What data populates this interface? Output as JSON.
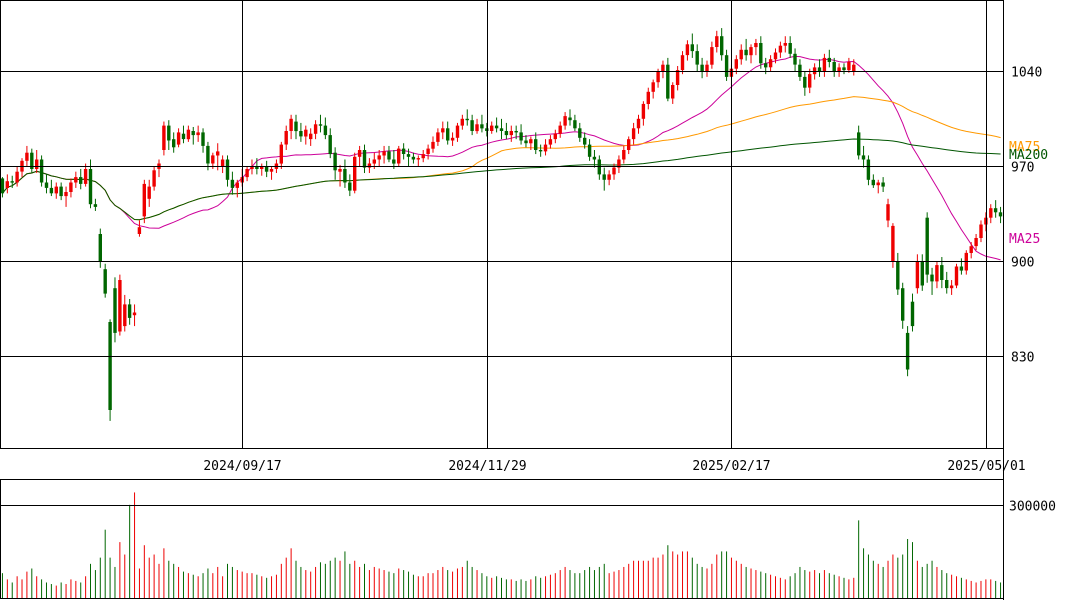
{
  "chart_data": {
    "type": "candlestick",
    "price_axis": {
      "ticks": [
        830,
        900,
        970,
        1040
      ],
      "ylim": [
        762,
        1092
      ]
    },
    "volume_axis": {
      "ticks": [
        300000
      ],
      "ylim": [
        0,
        380000
      ]
    },
    "x_ticks": [
      {
        "index": 49,
        "label": "2024/09/17"
      },
      {
        "index": 99,
        "label": "2024/11/29"
      },
      {
        "index": 149,
        "label": "2025/02/17"
      },
      {
        "index": 201,
        "label": "2025/05/01"
      }
    ],
    "colors": {
      "up": "#ee0000",
      "down": "#006600",
      "ma25": "#cc0099",
      "ma75": "#ff9900",
      "ma200": "#005500"
    },
    "moving_averages": [
      {
        "name": "MA25",
        "color": "#cc0099",
        "last": 917
      },
      {
        "name": "MA75",
        "color": "#ff9900",
        "last": 985
      },
      {
        "name": "MA200",
        "color": "#005500",
        "last": 979
      }
    ],
    "candles": [
      [
        961,
        962,
        947,
        950,
        80000
      ],
      [
        954,
        964,
        950,
        959,
        60000
      ],
      [
        959,
        963,
        954,
        958,
        50000
      ],
      [
        958,
        970,
        955,
        966,
        70000
      ],
      [
        966,
        976,
        962,
        974,
        60000
      ],
      [
        974,
        985,
        970,
        980,
        85000
      ],
      [
        980,
        983,
        965,
        968,
        95000
      ],
      [
        968,
        982,
        965,
        975,
        70000
      ],
      [
        975,
        978,
        955,
        958,
        60000
      ],
      [
        958,
        964,
        950,
        954,
        50000
      ],
      [
        954,
        960,
        948,
        950,
        45000
      ],
      [
        950,
        958,
        946,
        955,
        40000
      ],
      [
        955,
        958,
        945,
        948,
        50000
      ],
      [
        948,
        955,
        940,
        951,
        45000
      ],
      [
        951,
        961,
        947,
        958,
        60000
      ],
      [
        958,
        966,
        954,
        962,
        55000
      ],
      [
        962,
        968,
        953,
        957,
        50000
      ],
      [
        957,
        972,
        955,
        968,
        70000
      ],
      [
        968,
        975,
        939,
        942,
        110000
      ],
      [
        942,
        946,
        937,
        940,
        90000
      ],
      [
        920,
        924,
        895,
        900,
        130000
      ],
      [
        894,
        898,
        873,
        876,
        220000
      ],
      [
        855,
        857,
        782,
        790,
        130000
      ],
      [
        880,
        888,
        840,
        847,
        100000
      ],
      [
        848,
        890,
        845,
        886,
        180000
      ],
      [
        852,
        875,
        848,
        868,
        140000
      ],
      [
        868,
        872,
        853,
        858,
        300000
      ],
      [
        860,
        868,
        852,
        862,
        340000
      ],
      [
        920,
        930,
        918,
        925,
        95000
      ],
      [
        933,
        960,
        928,
        957,
        170000
      ],
      [
        946,
        960,
        940,
        955,
        130000
      ],
      [
        955,
        970,
        952,
        967,
        140000
      ],
      [
        968,
        975,
        962,
        972,
        110000
      ],
      [
        982,
        1003,
        978,
        1000,
        160000
      ],
      [
        1000,
        1004,
        982,
        989,
        120000
      ],
      [
        990,
        995,
        980,
        984,
        110000
      ],
      [
        986,
        998,
        984,
        995,
        100000
      ],
      [
        994,
        1000,
        987,
        990,
        85000
      ],
      [
        990,
        1000,
        988,
        997,
        80000
      ],
      [
        996,
        999,
        986,
        993,
        75000
      ],
      [
        993,
        1000,
        988,
        995,
        70000
      ],
      [
        995,
        998,
        980,
        985,
        80000
      ],
      [
        985,
        988,
        967,
        972,
        95000
      ],
      [
        972,
        980,
        968,
        978,
        80000
      ],
      [
        978,
        987,
        967,
        981,
        100000
      ],
      [
        970,
        978,
        965,
        975,
        70000
      ],
      [
        975,
        978,
        955,
        960,
        110000
      ],
      [
        960,
        966,
        949,
        954,
        100000
      ],
      [
        954,
        960,
        947,
        958,
        90000
      ],
      [
        958,
        968,
        955,
        962,
        85000
      ],
      [
        962,
        970,
        959,
        968,
        80000
      ],
      [
        968,
        975,
        964,
        970,
        80000
      ],
      [
        970,
        976,
        964,
        968,
        75000
      ],
      [
        968,
        972,
        963,
        970,
        70000
      ],
      [
        970,
        974,
        962,
        966,
        65000
      ],
      [
        966,
        970,
        960,
        968,
        70000
      ],
      [
        968,
        975,
        965,
        972,
        75000
      ],
      [
        972,
        988,
        968,
        986,
        110000
      ],
      [
        986,
        1000,
        982,
        996,
        130000
      ],
      [
        996,
        1008,
        990,
        1005,
        160000
      ],
      [
        1003,
        1008,
        990,
        996,
        120000
      ],
      [
        996,
        1002,
        988,
        992,
        100000
      ],
      [
        992,
        1000,
        986,
        997,
        90000
      ],
      [
        990,
        998,
        985,
        994,
        85000
      ],
      [
        994,
        1004,
        990,
        1001,
        100000
      ],
      [
        1001,
        1008,
        995,
        1000,
        115000
      ],
      [
        1000,
        1006,
        990,
        993,
        110000
      ],
      [
        993,
        998,
        976,
        979,
        120000
      ],
      [
        980,
        984,
        960,
        967,
        130000
      ],
      [
        966,
        971,
        955,
        968,
        120000
      ],
      [
        968,
        975,
        954,
        958,
        150000
      ],
      [
        958,
        964,
        948,
        952,
        110000
      ],
      [
        952,
        980,
        950,
        977,
        120000
      ],
      [
        977,
        985,
        970,
        982,
        100000
      ],
      [
        982,
        986,
        965,
        969,
        110000
      ],
      [
        969,
        976,
        965,
        972,
        90000
      ],
      [
        972,
        980,
        968,
        975,
        100000
      ],
      [
        975,
        982,
        970,
        978,
        95000
      ],
      [
        978,
        985,
        972,
        981,
        90000
      ],
      [
        981,
        985,
        973,
        975,
        85000
      ],
      [
        975,
        982,
        968,
        972,
        80000
      ],
      [
        972,
        985,
        970,
        983,
        95000
      ],
      [
        983,
        987,
        975,
        979,
        90000
      ],
      [
        979,
        983,
        970,
        977,
        85000
      ],
      [
        977,
        980,
        972,
        975,
        75000
      ],
      [
        975,
        978,
        970,
        976,
        70000
      ],
      [
        976,
        982,
        973,
        979,
        70000
      ],
      [
        979,
        986,
        975,
        983,
        80000
      ],
      [
        983,
        992,
        980,
        988,
        80000
      ],
      [
        988,
        998,
        985,
        995,
        90000
      ],
      [
        995,
        1003,
        990,
        998,
        100000
      ],
      [
        998,
        1003,
        986,
        989,
        90000
      ],
      [
        989,
        995,
        985,
        991,
        85000
      ],
      [
        991,
        1002,
        988,
        1000,
        95000
      ],
      [
        1000,
        1008,
        997,
        1005,
        100000
      ],
      [
        1005,
        1012,
        1000,
        1004,
        120000
      ],
      [
        1004,
        1008,
        993,
        996,
        100000
      ],
      [
        996,
        1005,
        994,
        1001,
        90000
      ],
      [
        1001,
        1008,
        995,
        998,
        80000
      ],
      [
        998,
        1002,
        992,
        996,
        70000
      ],
      [
        996,
        1003,
        994,
        1000,
        65000
      ],
      [
        1000,
        1006,
        995,
        998,
        70000
      ],
      [
        998,
        1005,
        990,
        996,
        65000
      ],
      [
        996,
        1002,
        990,
        993,
        60000
      ],
      [
        993,
        1000,
        988,
        996,
        60000
      ],
      [
        996,
        1000,
        990,
        995,
        55000
      ],
      [
        995,
        1001,
        986,
        989,
        60000
      ],
      [
        989,
        993,
        984,
        987,
        55000
      ],
      [
        987,
        992,
        982,
        990,
        60000
      ],
      [
        990,
        995,
        979,
        982,
        70000
      ],
      [
        982,
        986,
        977,
        981,
        65000
      ],
      [
        981,
        990,
        978,
        986,
        70000
      ],
      [
        986,
        993,
        983,
        990,
        75000
      ],
      [
        990,
        997,
        987,
        994,
        80000
      ],
      [
        994,
        1003,
        991,
        1000,
        90000
      ],
      [
        1000,
        1010,
        997,
        1007,
        100000
      ],
      [
        1006,
        1012,
        1000,
        1004,
        90000
      ],
      [
        1004,
        1008,
        996,
        998,
        80000
      ],
      [
        998,
        1002,
        988,
        991,
        80000
      ],
      [
        991,
        995,
        983,
        986,
        90000
      ],
      [
        986,
        990,
        974,
        977,
        100000
      ],
      [
        977,
        982,
        969,
        975,
        90000
      ],
      [
        975,
        978,
        960,
        964,
        100000
      ],
      [
        964,
        969,
        952,
        960,
        110000
      ],
      [
        960,
        967,
        956,
        964,
        80000
      ],
      [
        964,
        972,
        960,
        969,
        85000
      ],
      [
        969,
        978,
        965,
        975,
        90000
      ],
      [
        975,
        985,
        972,
        982,
        100000
      ],
      [
        982,
        992,
        979,
        990,
        110000
      ],
      [
        990,
        1002,
        986,
        998,
        120000
      ],
      [
        998,
        1008,
        994,
        1005,
        120000
      ],
      [
        1005,
        1018,
        1000,
        1016,
        120000
      ],
      [
        1016,
        1028,
        1012,
        1025,
        120000
      ],
      [
        1025,
        1034,
        1020,
        1032,
        130000
      ],
      [
        1032,
        1042,
        1028,
        1040,
        130000
      ],
      [
        1040,
        1048,
        1035,
        1045,
        140000
      ],
      [
        1045,
        1050,
        1018,
        1020,
        170000
      ],
      [
        1020,
        1032,
        1016,
        1030,
        150000
      ],
      [
        1030,
        1044,
        1026,
        1041,
        140000
      ],
      [
        1041,
        1055,
        1038,
        1052,
        150000
      ],
      [
        1052,
        1063,
        1048,
        1060,
        150000
      ],
      [
        1060,
        1068,
        1050,
        1055,
        130000
      ],
      [
        1055,
        1060,
        1040,
        1045,
        110000
      ],
      [
        1045,
        1050,
        1035,
        1040,
        100000
      ],
      [
        1040,
        1048,
        1036,
        1045,
        95000
      ],
      [
        1045,
        1062,
        1042,
        1058,
        110000
      ],
      [
        1058,
        1070,
        1054,
        1066,
        140000
      ],
      [
        1066,
        1072,
        1048,
        1052,
        150000
      ],
      [
        1052,
        1056,
        1033,
        1036,
        150000
      ],
      [
        1036,
        1045,
        1030,
        1042,
        130000
      ],
      [
        1042,
        1052,
        1038,
        1049,
        120000
      ],
      [
        1049,
        1060,
        1045,
        1056,
        110000
      ],
      [
        1056,
        1064,
        1048,
        1052,
        100000
      ],
      [
        1052,
        1060,
        1046,
        1058,
        95000
      ],
      [
        1058,
        1064,
        1052,
        1061,
        90000
      ],
      [
        1061,
        1066,
        1042,
        1046,
        85000
      ],
      [
        1046,
        1050,
        1038,
        1043,
        80000
      ],
      [
        1043,
        1052,
        1040,
        1049,
        75000
      ],
      [
        1049,
        1057,
        1046,
        1054,
        70000
      ],
      [
        1054,
        1062,
        1050,
        1059,
        65000
      ],
      [
        1059,
        1066,
        1054,
        1061,
        60000
      ],
      [
        1061,
        1066,
        1050,
        1053,
        70000
      ],
      [
        1053,
        1057,
        1040,
        1045,
        80000
      ],
      [
        1045,
        1049,
        1033,
        1036,
        100000
      ],
      [
        1036,
        1040,
        1022,
        1028,
        90000
      ],
      [
        1028,
        1042,
        1024,
        1038,
        85000
      ],
      [
        1038,
        1046,
        1034,
        1043,
        90000
      ],
      [
        1043,
        1049,
        1036,
        1040,
        80000
      ],
      [
        1040,
        1053,
        1036,
        1050,
        90000
      ],
      [
        1050,
        1056,
        1043,
        1047,
        80000
      ],
      [
        1047,
        1050,
        1036,
        1040,
        75000
      ],
      [
        1040,
        1046,
        1036,
        1043,
        70000
      ],
      [
        1043,
        1046,
        1038,
        1041,
        65000
      ],
      [
        1041,
        1050,
        1039,
        1047,
        60000
      ],
      [
        1040,
        1049,
        1037,
        1045,
        65000
      ],
      [
        995,
        1000,
        975,
        978,
        250000
      ],
      [
        978,
        985,
        969,
        975,
        160000
      ],
      [
        975,
        978,
        956,
        960,
        140000
      ],
      [
        960,
        964,
        954,
        956,
        120000
      ],
      [
        956,
        960,
        950,
        958,
        110000
      ],
      [
        958,
        962,
        951,
        955,
        100000
      ],
      [
        930,
        946,
        925,
        942,
        120000
      ],
      [
        900,
        928,
        895,
        926,
        140000
      ],
      [
        900,
        906,
        875,
        879,
        130000
      ],
      [
        880,
        884,
        850,
        856,
        140000
      ],
      [
        847,
        852,
        815,
        820,
        190000
      ],
      [
        870,
        876,
        848,
        852,
        180000
      ],
      [
        880,
        905,
        876,
        900,
        120000
      ],
      [
        900,
        905,
        878,
        882,
        100000
      ],
      [
        932,
        936,
        884,
        890,
        110000
      ],
      [
        890,
        895,
        875,
        885,
        120000
      ],
      [
        885,
        900,
        880,
        897,
        100000
      ],
      [
        897,
        903,
        880,
        886,
        90000
      ],
      [
        886,
        892,
        876,
        880,
        80000
      ],
      [
        880,
        886,
        875,
        882,
        75000
      ],
      [
        882,
        898,
        880,
        896,
        70000
      ],
      [
        896,
        902,
        890,
        893,
        65000
      ],
      [
        893,
        908,
        890,
        906,
        60000
      ],
      [
        906,
        914,
        902,
        911,
        55000
      ],
      [
        911,
        920,
        908,
        917,
        50000
      ],
      [
        917,
        930,
        914,
        927,
        55000
      ],
      [
        927,
        936,
        922,
        932,
        60000
      ],
      [
        932,
        942,
        928,
        939,
        60000
      ],
      [
        939,
        945,
        932,
        936,
        55000
      ],
      [
        936,
        940,
        928,
        933,
        50000
      ]
    ]
  }
}
